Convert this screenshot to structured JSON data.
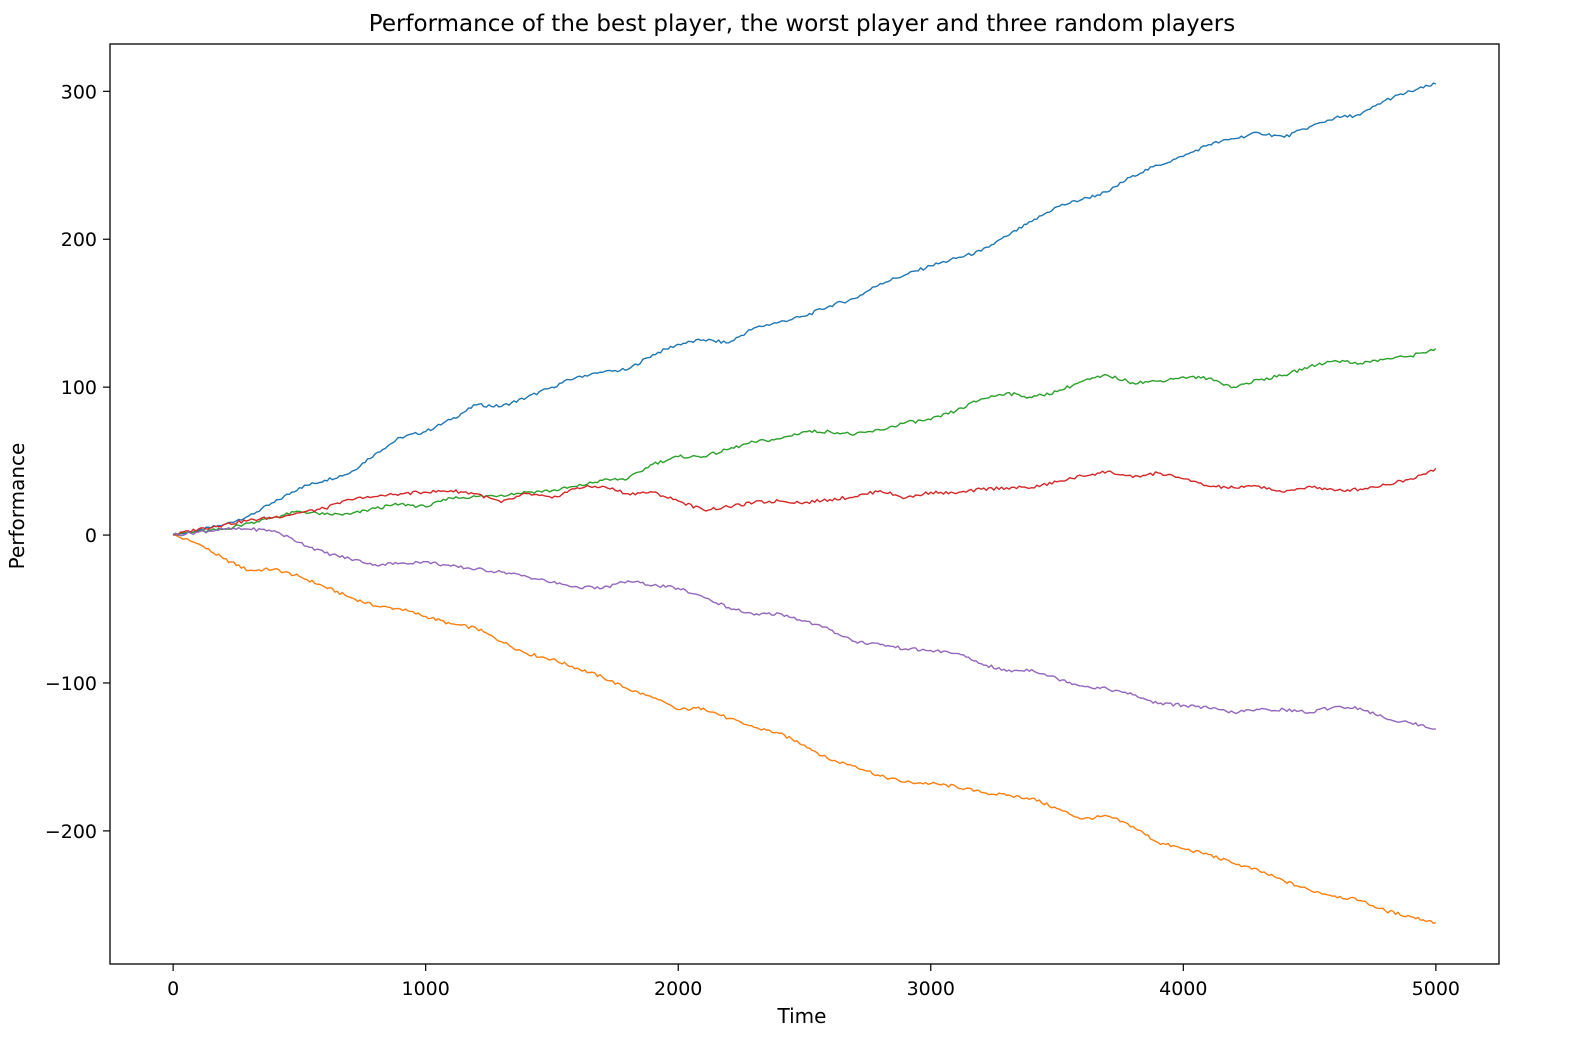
{
  "chart_data": {
    "type": "line",
    "title": "Performance of the best player, the worst player and three random players",
    "xlabel": "Time",
    "ylabel": "Performance",
    "xlim": [
      -250,
      5250
    ],
    "ylim": [
      -290,
      332
    ],
    "xticks": [
      0,
      1000,
      2000,
      3000,
      4000,
      5000
    ],
    "xtick_labels": [
      "0",
      "1000",
      "2000",
      "3000",
      "4000",
      "5000"
    ],
    "yticks": [
      -200,
      -100,
      0,
      100,
      200,
      300
    ],
    "ytick_labels": [
      "−200",
      "−100",
      "0",
      "100",
      "200",
      "300"
    ],
    "grid": false,
    "legend": "none",
    "series": [
      {
        "color": "#1f77b4",
        "x": [
          0,
          100,
          200,
          300,
          400,
          500,
          600,
          700,
          800,
          900,
          1000,
          1100,
          1200,
          1300,
          1400,
          1500,
          1600,
          1700,
          1800,
          1900,
          2000,
          2100,
          2200,
          2300,
          2400,
          2500,
          2600,
          2700,
          2800,
          2900,
          3000,
          3100,
          3200,
          3300,
          3400,
          3500,
          3600,
          3700,
          3800,
          3900,
          4000,
          4100,
          4200,
          4300,
          4400,
          4500,
          4600,
          4700,
          4800,
          4900,
          5000
        ],
        "y": [
          0,
          3,
          7,
          13,
          22,
          32,
          37,
          42,
          55,
          66,
          70,
          78,
          88,
          87,
          93,
          100,
          107,
          110,
          112,
          122,
          129,
          132,
          130,
          140,
          144,
          148,
          155,
          160,
          170,
          176,
          182,
          187,
          192,
          202,
          212,
          222,
          227,
          232,
          243,
          250,
          256,
          264,
          268,
          272,
          269,
          276,
          282,
          284,
          294,
          300,
          305
        ]
      },
      {
        "color": "#ff7f0e",
        "x": [
          0,
          100,
          200,
          300,
          400,
          500,
          600,
          700,
          800,
          900,
          1000,
          1100,
          1200,
          1300,
          1400,
          1500,
          1600,
          1700,
          1800,
          1900,
          2000,
          2100,
          2200,
          2300,
          2400,
          2500,
          2600,
          2700,
          2800,
          2900,
          3000,
          3100,
          3200,
          3300,
          3400,
          3500,
          3600,
          3700,
          3800,
          3900,
          4000,
          4100,
          4200,
          4300,
          4400,
          4500,
          4600,
          4700,
          4800,
          4900,
          5000
        ],
        "y": [
          0,
          -6,
          -16,
          -24,
          -23,
          -28,
          -35,
          -42,
          -48,
          -50,
          -55,
          -60,
          -63,
          -72,
          -80,
          -84,
          -90,
          -96,
          -104,
          -110,
          -118,
          -117,
          -124,
          -130,
          -134,
          -142,
          -152,
          -156,
          -163,
          -167,
          -168,
          -170,
          -174,
          -176,
          -178,
          -185,
          -192,
          -190,
          -197,
          -208,
          -212,
          -216,
          -222,
          -227,
          -234,
          -240,
          -244,
          -247,
          -254,
          -258,
          -262
        ]
      },
      {
        "color": "#2ca02c",
        "x": [
          0,
          100,
          200,
          300,
          400,
          500,
          600,
          700,
          800,
          900,
          1000,
          1100,
          1200,
          1300,
          1400,
          1500,
          1600,
          1700,
          1800,
          1900,
          2000,
          2100,
          2200,
          2300,
          2400,
          2500,
          2600,
          2700,
          2800,
          2900,
          3000,
          3100,
          3200,
          3300,
          3400,
          3500,
          3600,
          3700,
          3800,
          3900,
          4000,
          4100,
          4200,
          4300,
          4400,
          4500,
          4600,
          4700,
          4800,
          4900,
          5000
        ],
        "y": [
          1,
          2,
          4,
          8,
          12,
          16,
          14,
          14,
          18,
          21,
          19,
          25,
          26,
          27,
          29,
          30,
          33,
          37,
          38,
          48,
          53,
          53,
          58,
          63,
          65,
          70,
          70,
          68,
          71,
          76,
          78,
          84,
          92,
          96,
          93,
          97,
          104,
          108,
          103,
          104,
          107,
          106,
          100,
          105,
          108,
          114,
          118,
          116,
          119,
          121,
          126
        ]
      },
      {
        "color": "#d62728",
        "x": [
          0,
          100,
          200,
          300,
          400,
          500,
          600,
          700,
          800,
          900,
          1000,
          1100,
          1200,
          1300,
          1400,
          1500,
          1600,
          1700,
          1800,
          1900,
          2000,
          2100,
          2200,
          2300,
          2400,
          2500,
          2600,
          2700,
          2800,
          2900,
          3000,
          3100,
          3200,
          3300,
          3400,
          3500,
          3600,
          3700,
          3800,
          3900,
          4000,
          4100,
          4200,
          4300,
          4400,
          4500,
          4600,
          4700,
          4800,
          4900,
          5000
        ],
        "y": [
          0,
          4,
          7,
          10,
          12,
          15,
          18,
          24,
          26,
          28,
          29,
          30,
          28,
          22,
          28,
          25,
          32,
          33,
          28,
          29,
          23,
          17,
          19,
          22,
          23,
          22,
          24,
          26,
          30,
          25,
          29,
          28,
          31,
          32,
          32,
          36,
          40,
          43,
          39,
          42,
          38,
          33,
          32,
          33,
          29,
          33,
          30,
          31,
          34,
          38,
          45
        ]
      },
      {
        "color": "#9467bd",
        "x": [
          0,
          100,
          200,
          300,
          400,
          500,
          600,
          700,
          800,
          900,
          1000,
          1100,
          1200,
          1300,
          1400,
          1500,
          1600,
          1700,
          1800,
          1900,
          2000,
          2100,
          2200,
          2300,
          2400,
          2500,
          2600,
          2700,
          2800,
          2900,
          3000,
          3100,
          3200,
          3300,
          3400,
          3500,
          3600,
          3700,
          3800,
          3900,
          4000,
          4100,
          4200,
          4300,
          4400,
          4500,
          4600,
          4700,
          4800,
          4900,
          5000
        ],
        "y": [
          0,
          2,
          4,
          4,
          3,
          -5,
          -12,
          -16,
          -20,
          -19,
          -18,
          -21,
          -23,
          -25,
          -28,
          -32,
          -35,
          -36,
          -31,
          -34,
          -36,
          -42,
          -49,
          -54,
          -53,
          -58,
          -64,
          -72,
          -74,
          -77,
          -78,
          -80,
          -87,
          -92,
          -91,
          -97,
          -102,
          -104,
          -108,
          -114,
          -115,
          -117,
          -120,
          -118,
          -118,
          -120,
          -116,
          -117,
          -124,
          -127,
          -131
        ]
      }
    ]
  }
}
